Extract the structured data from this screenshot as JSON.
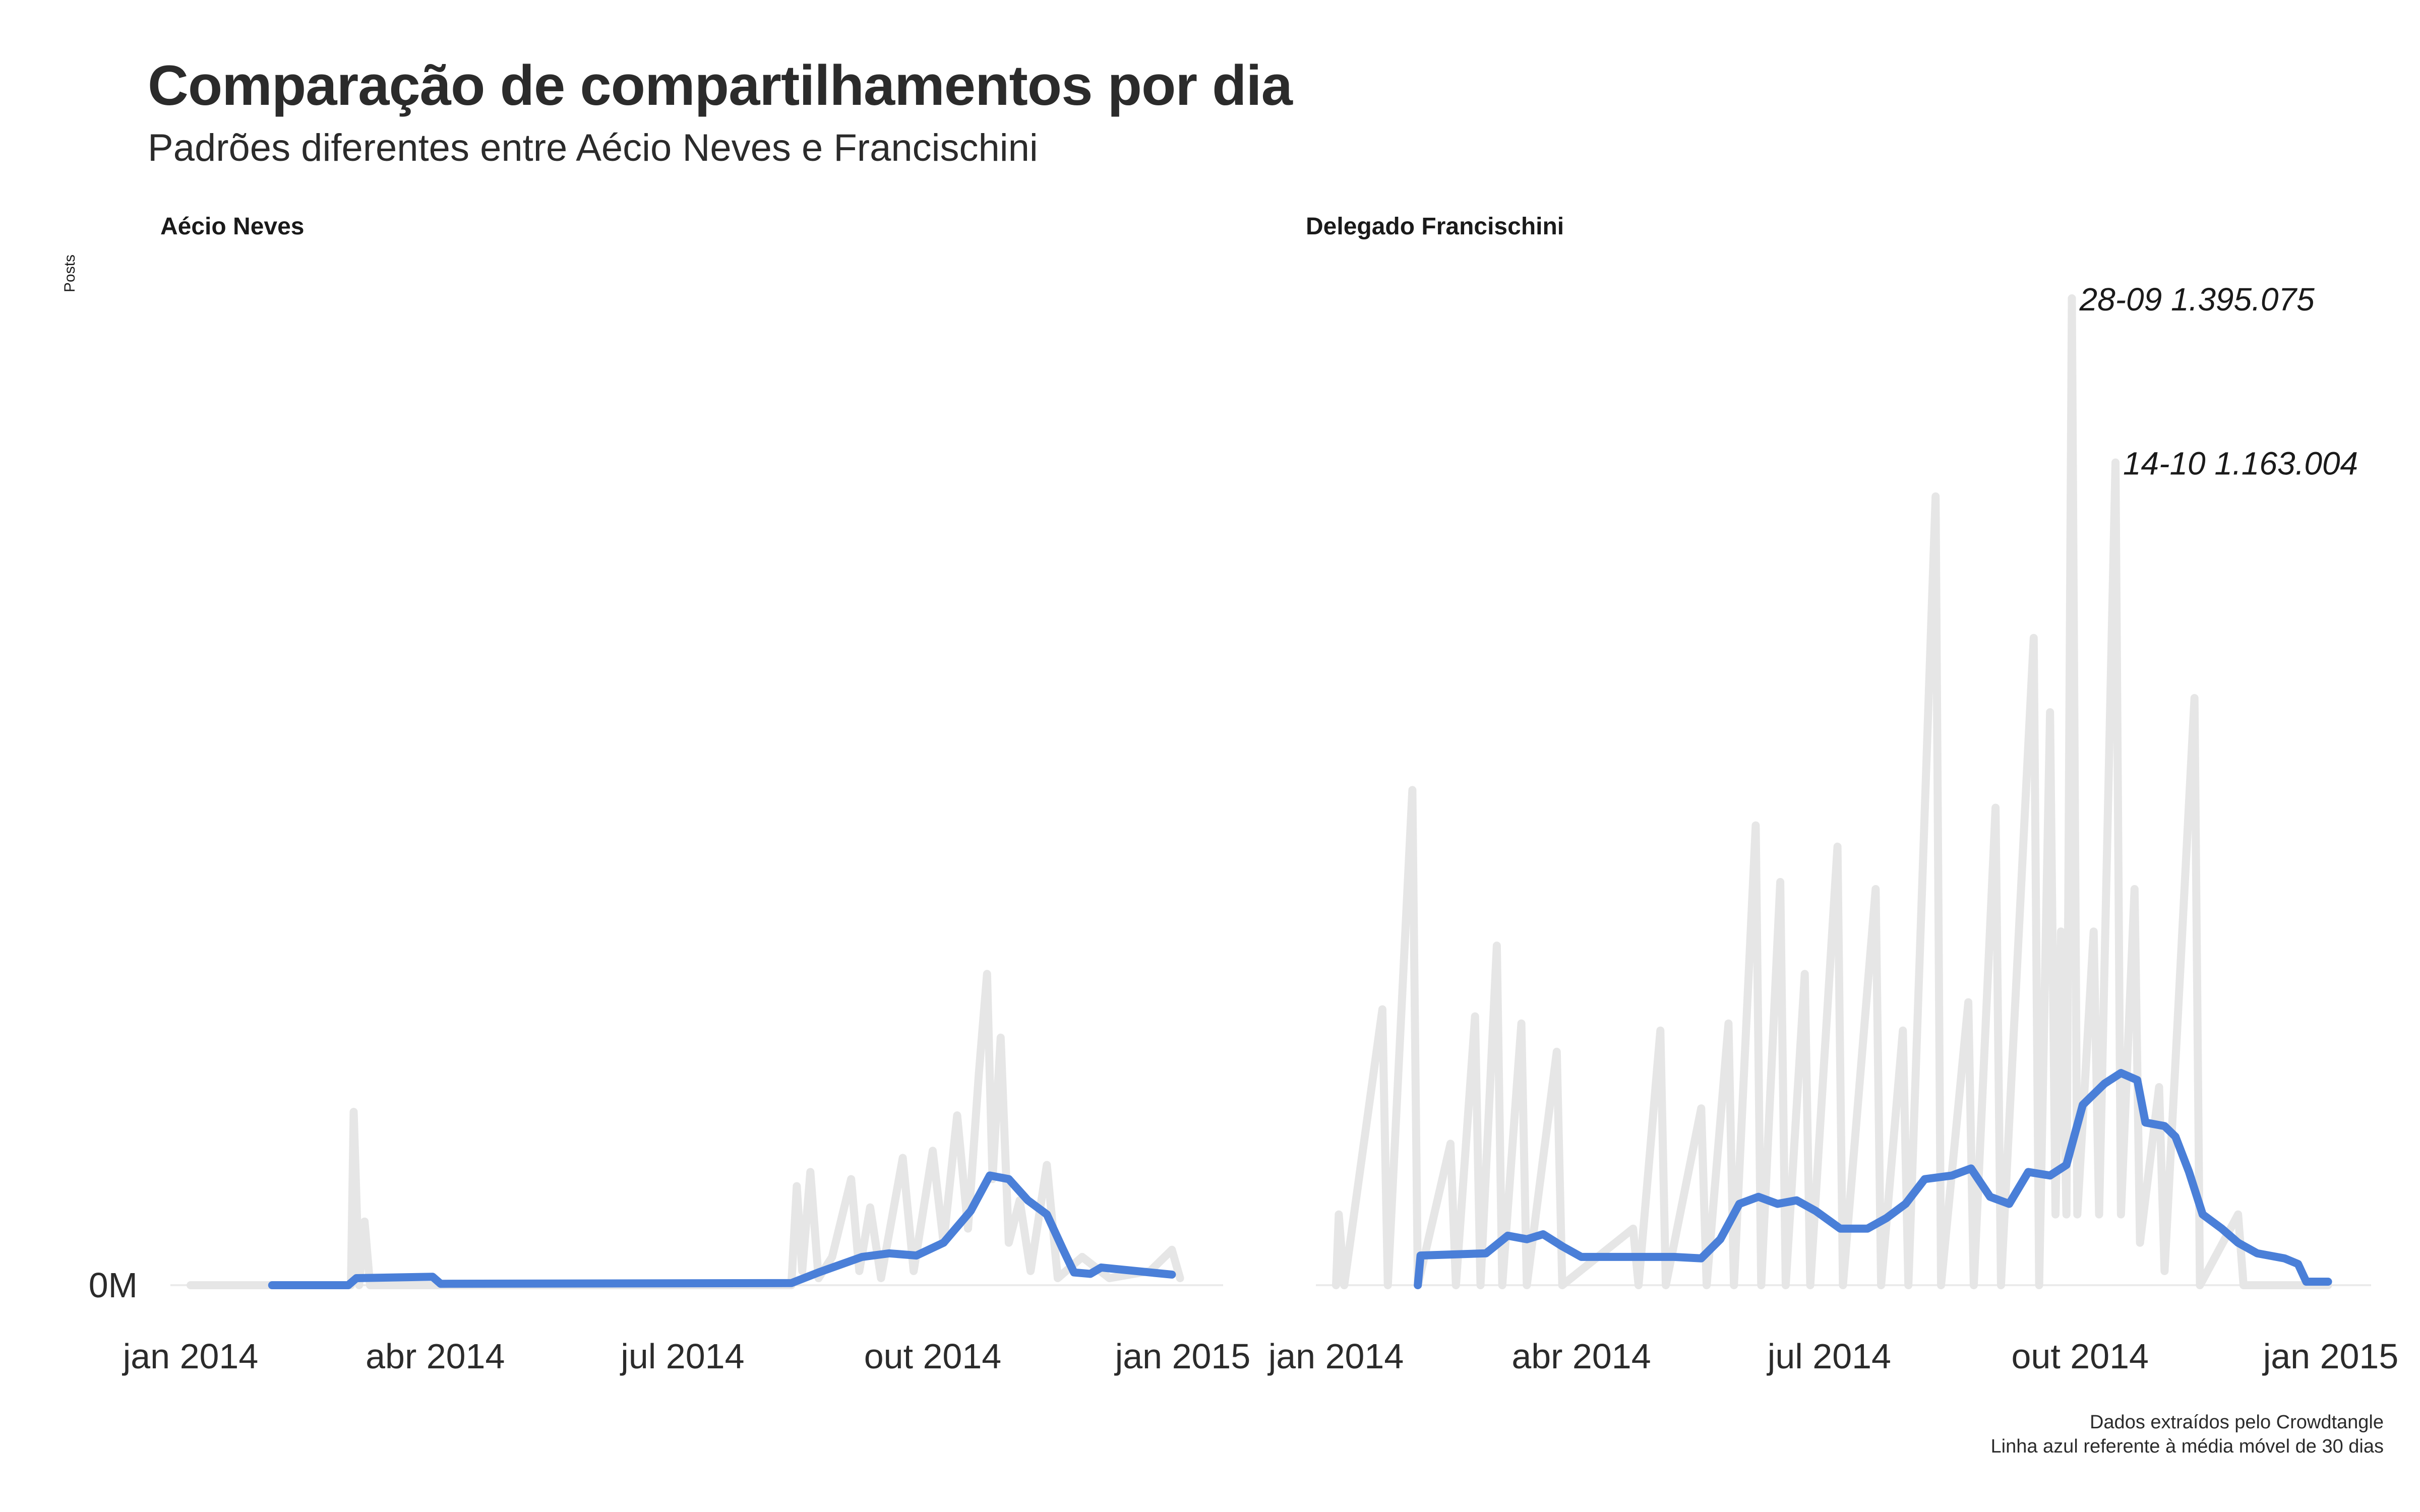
{
  "chart_data": {
    "type": "line",
    "title": "Comparação de compartilhamentos por dia",
    "subtitle": "Padrões diferentes entre Aécio Neves e Francischini",
    "ylabel": "Posts",
    "y_tick_labels": [
      "0M"
    ],
    "x_tick_labels": [
      "jan 2014",
      "abr 2014",
      "jul 2014",
      "out 2014",
      "jan 2015"
    ],
    "ylim": [
      0,
      1400000
    ],
    "caption": [
      "Dados extraídos pelo Crowdtangle",
      "Linha azul referente à média móvel de 30 dias"
    ],
    "colors": {
      "daily": "#e6e6e6",
      "moving_average": "#4a7fd8"
    },
    "panels": [
      {
        "name": "Aécio Neves",
        "daily": [
          {
            "date": "2014-01-01",
            "value": 0
          },
          {
            "date": "2014-02-25",
            "value": 0
          },
          {
            "date": "2014-03-01",
            "value": 0
          },
          {
            "date": "2014-03-02",
            "value": 245000
          },
          {
            "date": "2014-03-04",
            "value": 0
          },
          {
            "date": "2014-03-06",
            "value": 90000
          },
          {
            "date": "2014-03-08",
            "value": 0
          },
          {
            "date": "2014-08-10",
            "value": 0
          },
          {
            "date": "2014-08-12",
            "value": 140000
          },
          {
            "date": "2014-08-14",
            "value": 20000
          },
          {
            "date": "2014-08-17",
            "value": 160000
          },
          {
            "date": "2014-08-20",
            "value": 10000
          },
          {
            "date": "2014-08-25",
            "value": 40000
          },
          {
            "date": "2014-09-01",
            "value": 150000
          },
          {
            "date": "2014-09-04",
            "value": 20000
          },
          {
            "date": "2014-09-08",
            "value": 110000
          },
          {
            "date": "2014-09-12",
            "value": 10000
          },
          {
            "date": "2014-09-20",
            "value": 180000
          },
          {
            "date": "2014-09-24",
            "value": 20000
          },
          {
            "date": "2014-10-01",
            "value": 190000
          },
          {
            "date": "2014-10-05",
            "value": 60000
          },
          {
            "date": "2014-10-10",
            "value": 240000
          },
          {
            "date": "2014-10-14",
            "value": 80000
          },
          {
            "date": "2014-10-18",
            "value": 300000
          },
          {
            "date": "2014-10-21",
            "value": 440000
          },
          {
            "date": "2014-10-23",
            "value": 150000
          },
          {
            "date": "2014-10-26",
            "value": 350000
          },
          {
            "date": "2014-10-29",
            "value": 60000
          },
          {
            "date": "2014-11-02",
            "value": 120000
          },
          {
            "date": "2014-11-06",
            "value": 20000
          },
          {
            "date": "2014-11-12",
            "value": 170000
          },
          {
            "date": "2014-11-16",
            "value": 10000
          },
          {
            "date": "2014-11-25",
            "value": 40000
          },
          {
            "date": "2014-12-05",
            "value": 10000
          },
          {
            "date": "2014-12-20",
            "value": 20000
          },
          {
            "date": "2014-12-28",
            "value": 50000
          },
          {
            "date": "2014-12-31",
            "value": 10000
          }
        ],
        "moving_average": [
          {
            "date": "2014-01-31",
            "value": 0
          },
          {
            "date": "2014-02-28",
            "value": 0
          },
          {
            "date": "2014-03-03",
            "value": 10000
          },
          {
            "date": "2014-03-31",
            "value": 12000
          },
          {
            "date": "2014-04-03",
            "value": 2000
          },
          {
            "date": "2014-08-10",
            "value": 3000
          },
          {
            "date": "2014-08-20",
            "value": 18000
          },
          {
            "date": "2014-09-05",
            "value": 40000
          },
          {
            "date": "2014-09-15",
            "value": 45000
          },
          {
            "date": "2014-09-25",
            "value": 42000
          },
          {
            "date": "2014-10-05",
            "value": 60000
          },
          {
            "date": "2014-10-15",
            "value": 105000
          },
          {
            "date": "2014-10-22",
            "value": 155000
          },
          {
            "date": "2014-10-29",
            "value": 150000
          },
          {
            "date": "2014-11-05",
            "value": 120000
          },
          {
            "date": "2014-11-12",
            "value": 100000
          },
          {
            "date": "2014-11-18",
            "value": 50000
          },
          {
            "date": "2014-11-22",
            "value": 18000
          },
          {
            "date": "2014-11-28",
            "value": 16000
          },
          {
            "date": "2014-12-02",
            "value": 25000
          },
          {
            "date": "2014-12-20",
            "value": 18000
          },
          {
            "date": "2014-12-28",
            "value": 15000
          }
        ]
      },
      {
        "name": "Delegado Francischini",
        "annotations": [
          {
            "date": "2014-09-28",
            "value": 1395075,
            "text": "28-09 1.395.075"
          },
          {
            "date": "2014-10-14",
            "value": 1163004,
            "text": "14-10 1.163.004"
          }
        ],
        "daily": [
          {
            "date": "2014-01-01",
            "value": 0
          },
          {
            "date": "2014-01-02",
            "value": 100000
          },
          {
            "date": "2014-01-04",
            "value": 0
          },
          {
            "date": "2014-01-18",
            "value": 390000
          },
          {
            "date": "2014-01-20",
            "value": 0
          },
          {
            "date": "2014-01-29",
            "value": 700000
          },
          {
            "date": "2014-01-31",
            "value": 0
          },
          {
            "date": "2014-02-12",
            "value": 200000
          },
          {
            "date": "2014-02-14",
            "value": 0
          },
          {
            "date": "2014-02-21",
            "value": 380000
          },
          {
            "date": "2014-02-23",
            "value": 0
          },
          {
            "date": "2014-03-01",
            "value": 480000
          },
          {
            "date": "2014-03-03",
            "value": 0
          },
          {
            "date": "2014-03-10",
            "value": 370000
          },
          {
            "date": "2014-03-12",
            "value": 0
          },
          {
            "date": "2014-03-23",
            "value": 330000
          },
          {
            "date": "2014-03-25",
            "value": 0
          },
          {
            "date": "2014-04-20",
            "value": 80000
          },
          {
            "date": "2014-04-22",
            "value": 0
          },
          {
            "date": "2014-04-30",
            "value": 360000
          },
          {
            "date": "2014-05-02",
            "value": 0
          },
          {
            "date": "2014-05-15",
            "value": 250000
          },
          {
            "date": "2014-05-17",
            "value": 0
          },
          {
            "date": "2014-05-25",
            "value": 370000
          },
          {
            "date": "2014-05-27",
            "value": 0
          },
          {
            "date": "2014-06-04",
            "value": 650000
          },
          {
            "date": "2014-06-06",
            "value": 0
          },
          {
            "date": "2014-06-13",
            "value": 570000
          },
          {
            "date": "2014-06-15",
            "value": 0
          },
          {
            "date": "2014-06-22",
            "value": 440000
          },
          {
            "date": "2014-06-24",
            "value": 0
          },
          {
            "date": "2014-07-04",
            "value": 620000
          },
          {
            "date": "2014-07-06",
            "value": 0
          },
          {
            "date": "2014-07-18",
            "value": 560000
          },
          {
            "date": "2014-07-20",
            "value": 0
          },
          {
            "date": "2014-07-28",
            "value": 360000
          },
          {
            "date": "2014-07-30",
            "value": 0
          },
          {
            "date": "2014-08-09",
            "value": 1115000
          },
          {
            "date": "2014-08-11",
            "value": 0
          },
          {
            "date": "2014-08-21",
            "value": 400000
          },
          {
            "date": "2014-08-23",
            "value": 0
          },
          {
            "date": "2014-08-31",
            "value": 675000
          },
          {
            "date": "2014-09-02",
            "value": 0
          },
          {
            "date": "2014-09-14",
            "value": 915000
          },
          {
            "date": "2014-09-16",
            "value": 0
          },
          {
            "date": "2014-09-20",
            "value": 810000
          },
          {
            "date": "2014-09-22",
            "value": 100000
          },
          {
            "date": "2014-09-24",
            "value": 500000
          },
          {
            "date": "2014-09-26",
            "value": 100000
          },
          {
            "date": "2014-09-28",
            "value": 1395075
          },
          {
            "date": "2014-09-30",
            "value": 100000
          },
          {
            "date": "2014-10-06",
            "value": 500000
          },
          {
            "date": "2014-10-08",
            "value": 100000
          },
          {
            "date": "2014-10-14",
            "value": 1163004
          },
          {
            "date": "2014-10-16",
            "value": 100000
          },
          {
            "date": "2014-10-21",
            "value": 560000
          },
          {
            "date": "2014-10-23",
            "value": 60000
          },
          {
            "date": "2014-10-30",
            "value": 280000
          },
          {
            "date": "2014-11-01",
            "value": 20000
          },
          {
            "date": "2014-11-12",
            "value": 830000
          },
          {
            "date": "2014-11-14",
            "value": 0
          },
          {
            "date": "2014-11-28",
            "value": 100000
          },
          {
            "date": "2014-11-30",
            "value": 0
          },
          {
            "date": "2014-12-31",
            "value": 0
          }
        ],
        "moving_average": [
          {
            "date": "2014-01-31",
            "value": 0
          },
          {
            "date": "2014-02-01",
            "value": 42000
          },
          {
            "date": "2014-02-25",
            "value": 45000
          },
          {
            "date": "2014-03-05",
            "value": 70000
          },
          {
            "date": "2014-03-12",
            "value": 65000
          },
          {
            "date": "2014-03-18",
            "value": 72000
          },
          {
            "date": "2014-03-25",
            "value": 55000
          },
          {
            "date": "2014-04-01",
            "value": 40000
          },
          {
            "date": "2014-05-05",
            "value": 40000
          },
          {
            "date": "2014-05-15",
            "value": 38000
          },
          {
            "date": "2014-05-22",
            "value": 65000
          },
          {
            "date": "2014-05-29",
            "value": 115000
          },
          {
            "date": "2014-06-05",
            "value": 125000
          },
          {
            "date": "2014-06-12",
            "value": 115000
          },
          {
            "date": "2014-06-19",
            "value": 120000
          },
          {
            "date": "2014-06-26",
            "value": 105000
          },
          {
            "date": "2014-07-05",
            "value": 80000
          },
          {
            "date": "2014-07-15",
            "value": 80000
          },
          {
            "date": "2014-07-22",
            "value": 95000
          },
          {
            "date": "2014-07-29",
            "value": 115000
          },
          {
            "date": "2014-08-05",
            "value": 150000
          },
          {
            "date": "2014-08-15",
            "value": 155000
          },
          {
            "date": "2014-08-22",
            "value": 165000
          },
          {
            "date": "2014-08-29",
            "value": 125000
          },
          {
            "date": "2014-09-05",
            "value": 115000
          },
          {
            "date": "2014-09-12",
            "value": 160000
          },
          {
            "date": "2014-09-20",
            "value": 155000
          },
          {
            "date": "2014-09-26",
            "value": 170000
          },
          {
            "date": "2014-10-02",
            "value": 255000
          },
          {
            "date": "2014-10-10",
            "value": 285000
          },
          {
            "date": "2014-10-16",
            "value": 300000
          },
          {
            "date": "2014-10-22",
            "value": 290000
          },
          {
            "date": "2014-10-25",
            "value": 230000
          },
          {
            "date": "2014-11-01",
            "value": 225000
          },
          {
            "date": "2014-11-05",
            "value": 210000
          },
          {
            "date": "2014-11-10",
            "value": 160000
          },
          {
            "date": "2014-11-15",
            "value": 100000
          },
          {
            "date": "2014-11-22",
            "value": 80000
          },
          {
            "date": "2014-11-28",
            "value": 60000
          },
          {
            "date": "2014-12-05",
            "value": 45000
          },
          {
            "date": "2014-12-15",
            "value": 38000
          },
          {
            "date": "2014-12-20",
            "value": 30000
          },
          {
            "date": "2014-12-23",
            "value": 5000
          },
          {
            "date": "2014-12-31",
            "value": 5000
          }
        ]
      }
    ]
  }
}
